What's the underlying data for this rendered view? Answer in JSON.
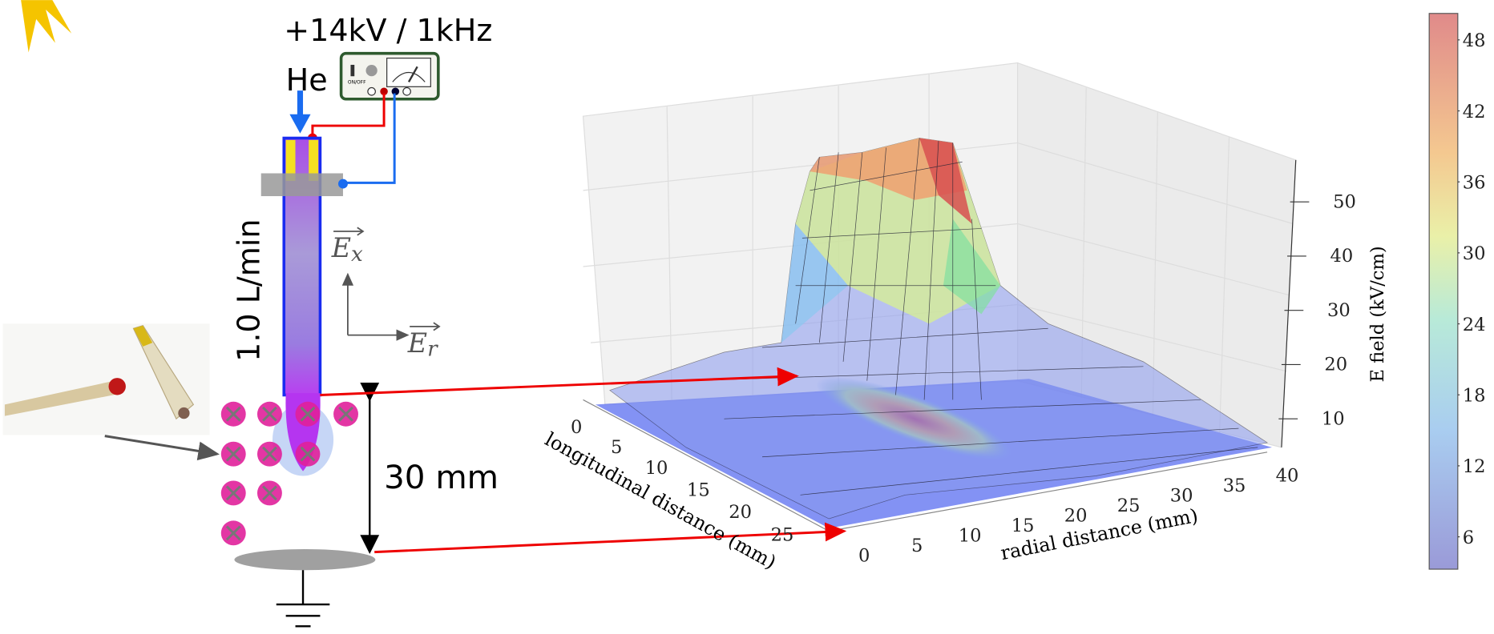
{
  "schematic": {
    "voltage": "+14kV / 1kHz",
    "gas": "He",
    "switch": "ON/OFF",
    "flow": "1.0 L/min",
    "field_x": "E",
    "field_x_sub": "x",
    "field_r": "E",
    "field_r_sub": "r",
    "gap": "30 mm"
  },
  "plot": {
    "x_label": "longitudinal distance (mm)",
    "x_ticks": [
      0,
      5,
      10,
      15,
      20,
      25
    ],
    "y_label": "radial distance (mm)",
    "y_ticks": [
      0,
      5,
      10,
      15,
      20,
      25,
      30,
      35,
      40
    ],
    "z_ticks": [
      10,
      20,
      30,
      40,
      50
    ],
    "colorbar_label": "E field (kV/cm)",
    "colorbar_ticks": [
      6,
      12,
      18,
      24,
      30,
      36,
      42,
      48
    ]
  }
}
